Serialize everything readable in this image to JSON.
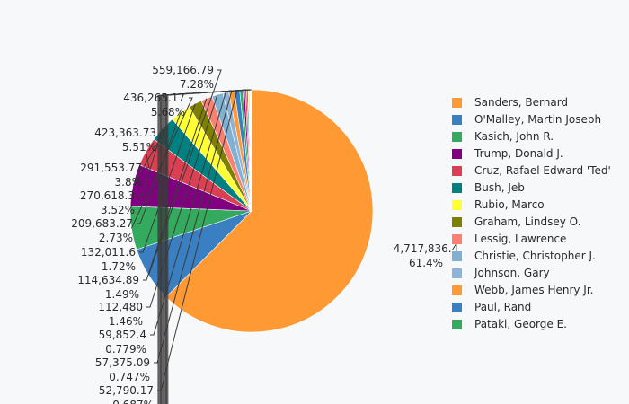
{
  "chart_data": {
    "type": "pie",
    "title": "",
    "slices": [
      {
        "name": "Sanders, Bernard",
        "value": 4717836.4,
        "value_label": "4,717,836.4",
        "percent_label": "61.4%",
        "color": "#ff9933"
      },
      {
        "name": "O'Malley, Martin Joseph",
        "value": 559166.79,
        "value_label": "559,166.79",
        "percent_label": "7.28%",
        "color": "#3a7fc1"
      },
      {
        "name": "Kasich, John R.",
        "value": 436265.17,
        "value_label": "436,265.17",
        "percent_label": "5.68%",
        "color": "#33aa5e"
      },
      {
        "name": "Trump, Donald J.",
        "value": 423363.73,
        "value_label": "423,363.73",
        "percent_label": "5.51%",
        "color": "#800080"
      },
      {
        "name": "Cruz, Rafael Edward 'Ted'",
        "value": 291553.77,
        "value_label": "291,553.77",
        "percent_label": "3.8%",
        "color": "#db4052"
      },
      {
        "name": "Bush, Jeb",
        "value": 270618.3,
        "value_label": "270,618.3",
        "percent_label": "3.52%",
        "color": "#008080"
      },
      {
        "name": "Rubio, Marco",
        "value": 209683.27,
        "value_label": "209,683.27",
        "percent_label": "2.73%",
        "color": "#ffff33"
      },
      {
        "name": "Graham, Lindsey O.",
        "value": 132011.6,
        "value_label": "132,011.6",
        "percent_label": "1.72%",
        "color": "#808000"
      },
      {
        "name": "Lessig, Lawrence",
        "value": 114634.89,
        "value_label": "114,634.89",
        "percent_label": "1.49%",
        "color": "#fb8072"
      },
      {
        "name": "Christie, Christopher J.",
        "value": 112480,
        "value_label": "112,480",
        "percent_label": "1.46%",
        "color": "#80b1d3"
      },
      {
        "name": "Johnson, Gary",
        "value": 59852.4,
        "value_label": "59,852.4",
        "percent_label": "0.779%",
        "color": "#8db3d9"
      },
      {
        "name": "Webb, James Henry Jr.",
        "value": 57375.09,
        "value_label": "57,375.09",
        "percent_label": "0.747%",
        "color": "#ff9933"
      },
      {
        "name": "Paul, Rand",
        "value": 52790.17,
        "value_label": "52,790.17",
        "percent_label": "0.687%",
        "color": "#3a7fc1"
      },
      {
        "name": "Pataki, George E.",
        "value": 30000,
        "value_label": "",
        "percent_label": "",
        "color": "#33aa5e"
      },
      {
        "name": "",
        "value": 22000,
        "value_label": "",
        "percent_label": "",
        "color": "#800080"
      },
      {
        "name": "",
        "value": 17000,
        "value_label": "",
        "percent_label": "",
        "color": "#db4052"
      },
      {
        "name": "",
        "value": 13000,
        "value_label": "",
        "percent_label": "",
        "color": "#008080"
      },
      {
        "name": "",
        "value": 10000,
        "value_label": "",
        "percent_label": "",
        "color": "#ffff33"
      },
      {
        "name": "",
        "value": 8000,
        "value_label": "",
        "percent_label": "",
        "color": "#808000"
      },
      {
        "name": "",
        "value": 6000,
        "value_label": "",
        "percent_label": "",
        "color": "#fb8072"
      },
      {
        "name": "",
        "value": 5000,
        "value_label": "",
        "percent_label": "",
        "color": "#80b1d3"
      },
      {
        "name": "",
        "value": 4000,
        "value_label": "",
        "percent_label": "",
        "color": "#ff9933"
      },
      {
        "name": "",
        "value": 3000,
        "value_label": "",
        "percent_label": "",
        "color": "#3a7fc1"
      }
    ],
    "legend": {
      "placement": "right"
    }
  }
}
